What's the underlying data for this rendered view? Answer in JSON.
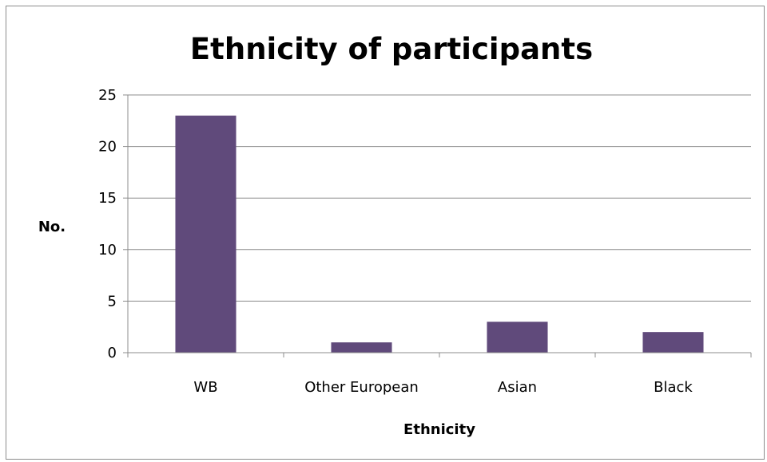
{
  "chart_data": {
    "type": "bar",
    "title": "Ethnicity of participants",
    "xlabel": "Ethnicity",
    "ylabel": "No.",
    "categories": [
      "WB",
      "Other European",
      "Asian",
      "Black"
    ],
    "values": [
      23,
      1,
      3,
      2
    ],
    "ylim": [
      0,
      25
    ],
    "yticks": [
      0,
      5,
      10,
      15,
      20,
      25
    ],
    "grid": true,
    "legend": "none",
    "bar_color": "#604a7b"
  }
}
